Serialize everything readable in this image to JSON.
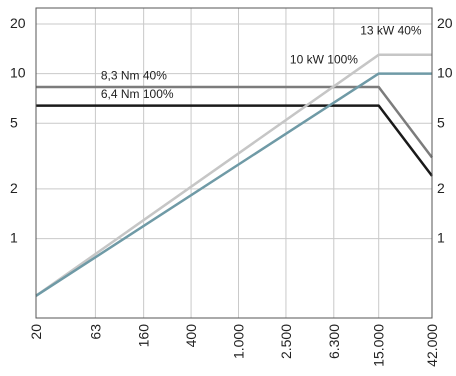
{
  "chart_data": {
    "type": "line",
    "x_scale": "log",
    "y_scale": "log",
    "x_ticks": [
      {
        "value": 20,
        "label": "20"
      },
      {
        "value": 63,
        "label": "63"
      },
      {
        "value": 160,
        "label": "160"
      },
      {
        "value": 400,
        "label": "400"
      },
      {
        "value": 1000,
        "label": "1.000"
      },
      {
        "value": 2500,
        "label": "2.500"
      },
      {
        "value": 6300,
        "label": "6.300"
      },
      {
        "value": 15000,
        "label": "15.000"
      },
      {
        "value": 42000,
        "label": "42.000"
      }
    ],
    "y_ticks": [
      {
        "value": 1,
        "label": "1"
      },
      {
        "value": 2,
        "label": "2"
      },
      {
        "value": 5,
        "label": "5"
      },
      {
        "value": 10,
        "label": "10"
      },
      {
        "value": 20,
        "label": "20"
      }
    ],
    "xlim": [
      20,
      42000
    ],
    "ylim": [
      0.33,
      25
    ],
    "grid": true,
    "legend": "none",
    "series": [
      {
        "name": "8,3 Nm 40%",
        "color": "#7c7c7c",
        "points": [
          [
            20,
            8.3
          ],
          [
            15000,
            8.3
          ],
          [
            42000,
            3.1
          ]
        ]
      },
      {
        "name": "6,4 Nm 100%",
        "color": "#1a1a1a",
        "points": [
          [
            20,
            6.4
          ],
          [
            15000,
            6.4
          ],
          [
            42000,
            2.4
          ]
        ]
      },
      {
        "name": "13 kW 40%",
        "color": "#c6c6c6",
        "points": [
          [
            20,
            0.45
          ],
          [
            15000,
            13
          ],
          [
            42000,
            13
          ]
        ]
      },
      {
        "name": "10 kW 100%",
        "color": "#6f9aa6",
        "points": [
          [
            20,
            0.45
          ],
          [
            15000,
            10
          ],
          [
            42000,
            10
          ]
        ]
      }
    ],
    "annotations": [
      {
        "text": "8,3 Nm 40%",
        "series": "8,3 Nm 40%",
        "x": 70,
        "y": 9.2
      },
      {
        "text": "6,4 Nm 100%",
        "series": "6,4 Nm 100%",
        "x": 70,
        "y": 7.1
      },
      {
        "text": "13 kW 40%",
        "series": "13 kW 40%",
        "x": 10500,
        "y": 17.3
      },
      {
        "text": "10 kW 100%",
        "series": "10 kW 100%",
        "x": 2700,
        "y": 11.5
      }
    ]
  }
}
